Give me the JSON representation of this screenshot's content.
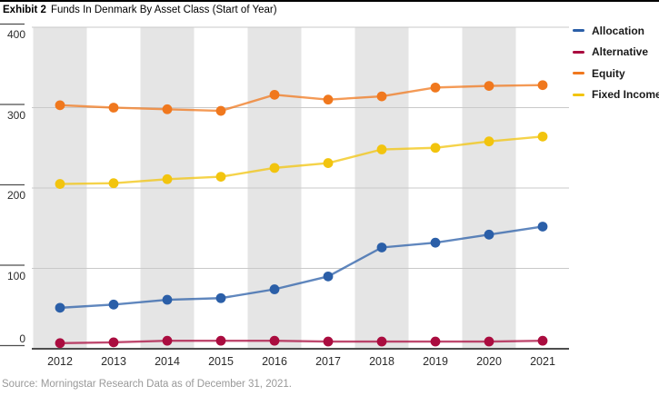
{
  "header": {
    "exhibit_label": "Exhibit 2",
    "exhibit_title": "Funds In Denmark By Asset Class (Start of Year)"
  },
  "source_line": "Source: Morningstar Research  Data as of December 31, 2021.",
  "chart_data": {
    "type": "line",
    "title": "Funds In Denmark By Asset Class (Start of Year)",
    "categories": [
      "2012",
      "2013",
      "2014",
      "2015",
      "2016",
      "2017",
      "2018",
      "2019",
      "2020",
      "2021"
    ],
    "yticks": [
      400,
      300,
      200,
      100,
      0
    ],
    "ylim": [
      0,
      400
    ],
    "grid": "horizontal",
    "legend_position": "top-right",
    "highlight_band_categories": [
      "2012",
      "2014",
      "2016",
      "2018",
      "2020"
    ],
    "series": [
      {
        "name": "Allocation",
        "color": "#2B5FA8",
        "values": [
          51,
          55,
          61,
          63,
          74,
          90,
          126,
          132,
          142,
          152
        ]
      },
      {
        "name": "Alternative",
        "color": "#AA0C3F",
        "values": [
          7,
          8,
          10,
          10,
          10,
          9,
          9,
          9,
          9,
          10
        ]
      },
      {
        "name": "Equity",
        "color": "#F0781E",
        "values": [
          303,
          300,
          298,
          296,
          316,
          310,
          314,
          325,
          327,
          328
        ]
      },
      {
        "name": "Fixed Income",
        "color": "#F2C40E",
        "values": [
          205,
          206,
          211,
          214,
          225,
          231,
          248,
          250,
          258,
          264
        ]
      }
    ]
  }
}
